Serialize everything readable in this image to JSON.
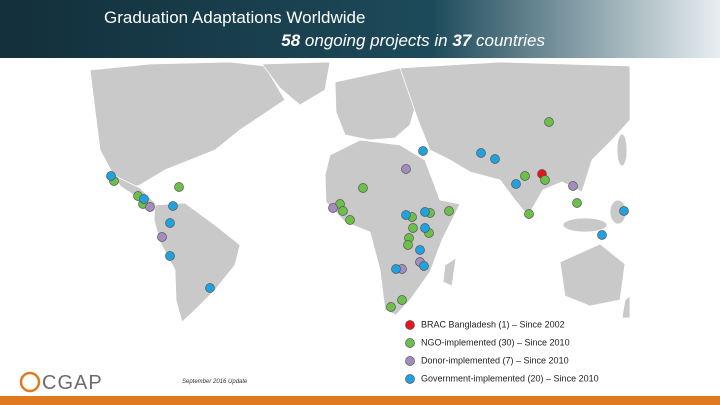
{
  "header": {
    "title": "Graduation Adaptations Worldwide",
    "subtitle": {
      "projects": "58",
      "middle": "ongoing projects in",
      "countries": "37",
      "end": "countries"
    }
  },
  "legend": [
    {
      "label": "BRAC Bangladesh (1) – Since 2002",
      "color": "#e8141a"
    },
    {
      "label": "NGO-implemented (30) – Since 2010",
      "color": "#6cc04a"
    },
    {
      "label": "Donor-implemented (7) – Since 2010",
      "color": "#a58cc0"
    },
    {
      "label": "Government-implemented (20) – Since 2010",
      "color": "#1fa3e0"
    }
  ],
  "footer": {
    "update": "September 2016 Update",
    "logo": "CGAP"
  }
}
